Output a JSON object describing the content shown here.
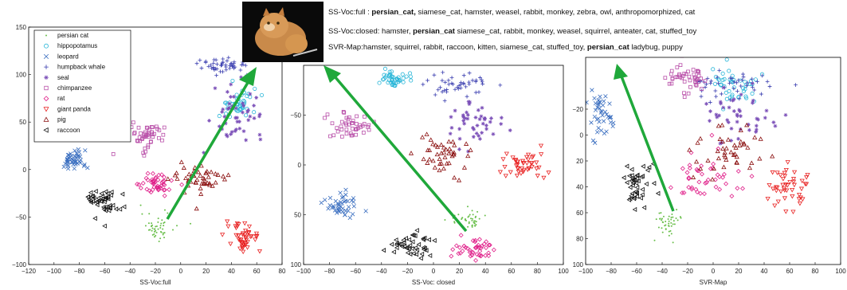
{
  "chart_data": [
    {
      "type": "scatter",
      "xlabel": "SS-Voc:full",
      "ylabel": "",
      "xlim": [
        -120,
        80
      ],
      "ylim": [
        -100,
        150
      ],
      "xticks": [
        "−120",
        "−100",
        "−80",
        "−60",
        "−40",
        "−20",
        "0",
        "20",
        "40",
        "60",
        "80"
      ],
      "yticks": [
        "−100",
        "−50",
        "0",
        "50",
        "100",
        "150"
      ],
      "legend_position": "top-left",
      "series": [
        {
          "name": "persian cat",
          "center": [
            -18,
            -60
          ],
          "spread": [
            12,
            14
          ]
        },
        {
          "name": "hippopotamus",
          "center": [
            45,
            68
          ],
          "spread": [
            14,
            14
          ]
        },
        {
          "name": "leopard",
          "center": [
            -85,
            10
          ],
          "spread": [
            9,
            10
          ]
        },
        {
          "name": "humpback whale",
          "center": [
            35,
            110
          ],
          "spread": [
            18,
            8
          ]
        },
        {
          "name": "seal",
          "center": [
            45,
            60
          ],
          "spread": [
            18,
            22
          ]
        },
        {
          "name": "chimpanzee",
          "center": [
            -25,
            35
          ],
          "spread": [
            12,
            14
          ]
        },
        {
          "name": "rat",
          "center": [
            -20,
            -15
          ],
          "spread": [
            12,
            10
          ]
        },
        {
          "name": "giant panda",
          "center": [
            50,
            -72
          ],
          "spread": [
            13,
            14
          ]
        },
        {
          "name": "pig",
          "center": [
            15,
            -10
          ],
          "spread": [
            20,
            14
          ]
        },
        {
          "name": "raccoon",
          "center": [
            -60,
            -35
          ],
          "spread": [
            14,
            14
          ]
        }
      ]
    },
    {
      "type": "scatter",
      "xlabel": "SS-Voc: closed",
      "ylabel": "",
      "xlim": [
        -100,
        100
      ],
      "ylim": [
        -100,
        100
      ],
      "xticks": [
        "−100",
        "−80",
        "−60",
        "−40",
        "−20",
        "0",
        "20",
        "40",
        "60",
        "80",
        "100"
      ],
      "yticks": [
        "−50",
        "0",
        "50",
        "100"
      ],
      "series": [
        {
          "name": "persian cat",
          "center": [
            25,
            55
          ],
          "spread": [
            12,
            10
          ]
        },
        {
          "name": "hippopotamus",
          "center": [
            -30,
            -85
          ],
          "spread": [
            10,
            8
          ]
        },
        {
          "name": "leopard",
          "center": [
            -70,
            40
          ],
          "spread": [
            12,
            12
          ]
        },
        {
          "name": "humpback whale",
          "center": [
            20,
            -80
          ],
          "spread": [
            22,
            10
          ]
        },
        {
          "name": "seal",
          "center": [
            30,
            -40
          ],
          "spread": [
            20,
            20
          ]
        },
        {
          "name": "chimpanzee",
          "center": [
            -65,
            -40
          ],
          "spread": [
            14,
            12
          ]
        },
        {
          "name": "rat",
          "center": [
            30,
            85
          ],
          "spread": [
            14,
            10
          ]
        },
        {
          "name": "giant panda",
          "center": [
            70,
            0
          ],
          "spread": [
            15,
            13
          ]
        },
        {
          "name": "pig",
          "center": [
            10,
            -10
          ],
          "spread": [
            22,
            16
          ]
        },
        {
          "name": "raccoon",
          "center": [
            -20,
            80
          ],
          "spread": [
            18,
            12
          ]
        }
      ]
    },
    {
      "type": "scatter",
      "xlabel": "SVR-Map",
      "ylabel": "",
      "xlim": [
        -100,
        100
      ],
      "ylim": [
        -60,
        100
      ],
      "xticks": [
        "−100",
        "−80",
        "−60",
        "−40",
        "−20",
        "0",
        "20",
        "40",
        "60",
        "80",
        "100"
      ],
      "yticks": [
        "−20",
        "0",
        "20",
        "40",
        "60",
        "80",
        "100"
      ],
      "series": [
        {
          "name": "persian cat",
          "center": [
            -35,
            68
          ],
          "spread": [
            10,
            10
          ]
        },
        {
          "name": "hippopotamus",
          "center": [
            15,
            -40
          ],
          "spread": [
            20,
            12
          ]
        },
        {
          "name": "leopard",
          "center": [
            -88,
            -15
          ],
          "spread": [
            8,
            16
          ]
        },
        {
          "name": "humpback whale",
          "center": [
            20,
            -38
          ],
          "spread": [
            30,
            10
          ]
        },
        {
          "name": "seal",
          "center": [
            15,
            -15
          ],
          "spread": [
            30,
            20
          ]
        },
        {
          "name": "chimpanzee",
          "center": [
            -20,
            -45
          ],
          "spread": [
            13,
            10
          ]
        },
        {
          "name": "rat",
          "center": [
            -5,
            35
          ],
          "spread": [
            22,
            20
          ]
        },
        {
          "name": "giant panda",
          "center": [
            60,
            40
          ],
          "spread": [
            15,
            16
          ]
        },
        {
          "name": "pig",
          "center": [
            10,
            15
          ],
          "spread": [
            25,
            20
          ]
        },
        {
          "name": "raccoon",
          "center": [
            -60,
            40
          ],
          "spread": [
            13,
            15
          ]
        }
      ]
    }
  ],
  "legend": {
    "entries": [
      {
        "label": "persian cat",
        "marker": "dot",
        "color": "#6abf4b"
      },
      {
        "label": "hippopotamus",
        "marker": "circle",
        "color": "#29b6d8"
      },
      {
        "label": "leopard",
        "marker": "x",
        "color": "#3b6fc0"
      },
      {
        "label": "humpback whale",
        "marker": "plus",
        "color": "#3b3fb0"
      },
      {
        "label": "seal",
        "marker": "star",
        "color": "#7b4fb8"
      },
      {
        "label": "chimpanzee",
        "marker": "square",
        "color": "#b84ea8"
      },
      {
        "label": "rat",
        "marker": "diamond",
        "color": "#e0208a"
      },
      {
        "label": "giant panda",
        "marker": "triangle-down",
        "color": "#e82020"
      },
      {
        "label": "pig",
        "marker": "triangle-up",
        "color": "#8b1010"
      },
      {
        "label": "raccoon",
        "marker": "triangle-left",
        "color": "#111111"
      }
    ]
  },
  "annotations": {
    "line1": {
      "prefix": "SS-Voc:full : ",
      "highlight": "persian_cat,",
      "rest": " siamese_cat,  hamster,  weasel,  rabbit,  monkey,  zebra, owl,  anthropomorphized, cat"
    },
    "line2": {
      "prefix": "SS-Voc:closed:  hamster, ",
      "highlight": "persian_cat",
      "rest": " siamese_cat, rabbit, monkey, weasel, squirrel, anteater, cat, stuffed_toy"
    },
    "line3": {
      "prefix": "SVR-Map:hamster, squirrel, rabbit, raccoon, kitten, siamese_cat, stuffed_toy, ",
      "highlight": "persian_cat",
      "rest": " ladybug, puppy"
    }
  },
  "image": {
    "subject": "persian-cat-photo-icon"
  },
  "colors": {
    "arrow": "#1fa83a"
  }
}
